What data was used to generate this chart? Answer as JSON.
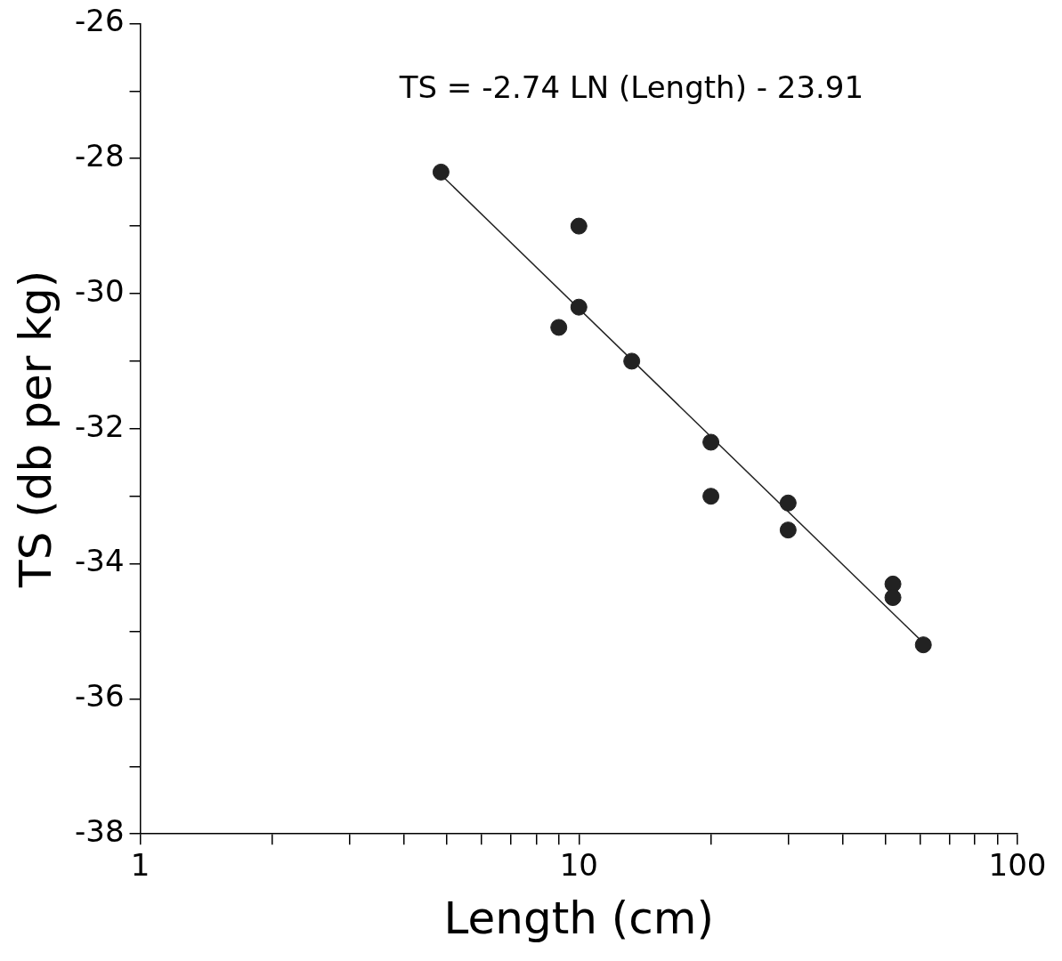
{
  "chart_data": {
    "type": "scatter",
    "xlabel": "Length (cm)",
    "ylabel": "TS (db per kg)",
    "log": "x",
    "grid": false,
    "xlim": [
      1,
      100
    ],
    "xticks": [
      1,
      {
        "value": 2,
        "label": null
      },
      {
        "value": 3,
        "label": null
      },
      {
        "value": 4,
        "label": null
      },
      {
        "value": 5,
        "label": null
      },
      {
        "value": 6,
        "label": null
      },
      {
        "value": 7,
        "label": null
      },
      {
        "value": 8,
        "label": null
      },
      {
        "value": 9,
        "label": null
      },
      10,
      {
        "value": 20,
        "label": null
      },
      {
        "value": 30,
        "label": null
      },
      {
        "value": 40,
        "label": null
      },
      {
        "value": 50,
        "label": null
      },
      {
        "value": 60,
        "label": null
      },
      {
        "value": 70,
        "label": null
      },
      {
        "value": 80,
        "label": null
      },
      {
        "value": 90,
        "label": null
      },
      100
    ],
    "ylim": [
      -38,
      -26
    ],
    "yticks": [
      -38,
      {
        "value": -37,
        "label": null
      },
      -36,
      {
        "value": -35,
        "label": null
      },
      -34,
      {
        "value": -33,
        "label": null
      },
      -32,
      {
        "value": -31,
        "label": null
      },
      -30,
      {
        "value": -29,
        "label": null
      },
      -28,
      {
        "value": -27,
        "label": null
      },
      -26
    ],
    "annotations": [
      "TS = -2.74 LN (Length) - 23.91"
    ],
    "series": [
      {
        "type": "scatter",
        "color": "#222222",
        "marker": "circle",
        "x": [
          4.85,
          10,
          9,
          10,
          13.2,
          20,
          20,
          30,
          30,
          52,
          52,
          61
        ],
        "values": [
          -28.2,
          -29.0,
          -30.5,
          -30.2,
          -31.0,
          -32.2,
          -33.0,
          -33.1,
          -33.5,
          -34.3,
          -34.5,
          -35.2
        ]
      },
      {
        "type": "line",
        "color": "#222222",
        "marker": "none",
        "x": [
          4.85,
          61
        ],
        "values": [
          -28.24,
          -35.17
        ]
      }
    ]
  }
}
